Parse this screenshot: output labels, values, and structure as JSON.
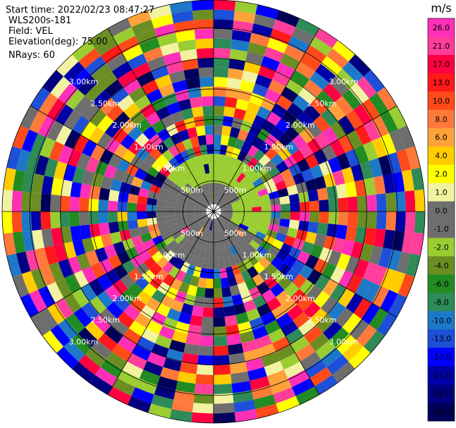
{
  "header": {
    "start_time": "Start time: 2022/02/23 08:47:27",
    "instrument": "WLS200s-181",
    "field": "Field: VEL",
    "elevation": "Elevation(deg): 75.00",
    "nrays": "NRays: 60"
  },
  "chart_data": {
    "type": "heatmap",
    "projection": "polar-ppi",
    "field": "VEL",
    "nrays": 60,
    "range_rings_km": [
      0.5,
      1.0,
      1.5,
      2.0,
      2.5,
      3.0
    ],
    "range_ring_labels": [
      "500m",
      "1.00km",
      "1.50km",
      "2.00km",
      "2.50km",
      "3.00km"
    ],
    "max_range_km": 3.45,
    "gate_count": 22,
    "colorbar": {
      "unit": "m/s",
      "ticks": [
        "26.0",
        "21.0",
        "17.0",
        "13.0",
        "10.0",
        "8.0",
        "6.0",
        "4.0",
        "2.0",
        "1.0",
        "0.0",
        "-1.0",
        "-2.0",
        "-4.0",
        "-6.0",
        "-8.0",
        "-10.0",
        "-13.0",
        "-17.0",
        "-21.0",
        "-26.0",
        "-30.0"
      ],
      "bounds": [
        30,
        26,
        21,
        17,
        13,
        10,
        8,
        6,
        4,
        2,
        1,
        0,
        -1,
        -2,
        -4,
        -6,
        -8,
        -10,
        -13,
        -17,
        -21,
        -26,
        -30
      ],
      "colors": [
        "#ff2fb8",
        "#ff3d9a",
        "#ff0040",
        "#ff1a1a",
        "#ff4a1a",
        "#ff7a3a",
        "#ffa23a",
        "#ffcc00",
        "#ffff00",
        "#f2f2a0",
        "#6e6e6e",
        "#6e6e6e",
        "#9acd32",
        "#6b8e23",
        "#228b22",
        "#2e8b57",
        "#1e78c8",
        "#1e4fd8",
        "#0000ff",
        "#0000a8",
        "#000080",
        "#00005a"
      ]
    },
    "inner_region": {
      "description": "low-velocity core within about 0.9 km",
      "dominant_values_ms": [
        0.0,
        -1.0
      ]
    }
  }
}
